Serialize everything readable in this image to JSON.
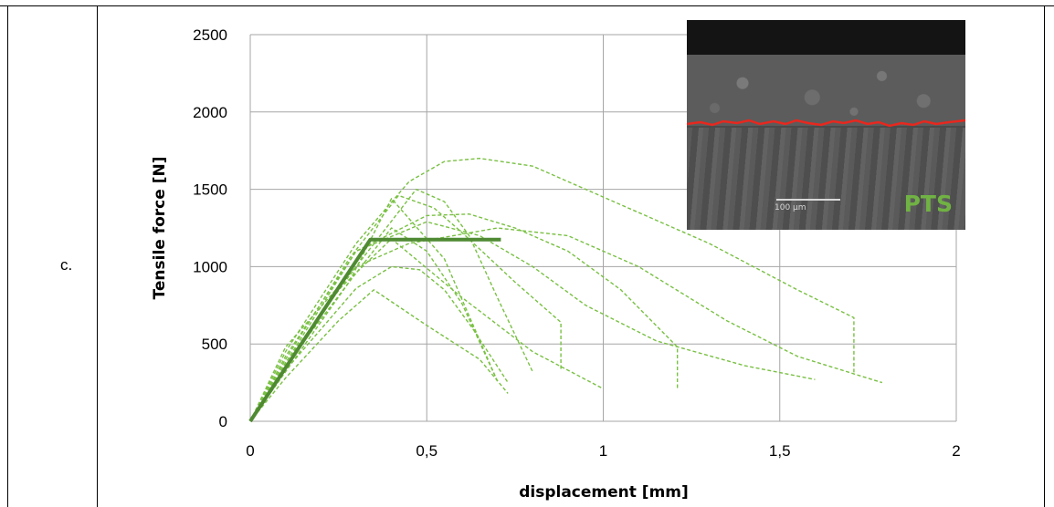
{
  "row_label": "c.",
  "inset": {
    "label": "PTS",
    "label_color": "#70b243",
    "boundary_color": "#e8271e",
    "scale_text": "100 µm"
  },
  "colors": {
    "dashed_series": "#79c043",
    "bilinear_model": "#4f8a32",
    "grid": "#a6a6a6"
  },
  "chart_data": {
    "type": "line",
    "xlabel": "displacement [mm]",
    "ylabel": "Tensile force [N]",
    "xlim": [
      0,
      2
    ],
    "ylim": [
      0,
      2500
    ],
    "x_ticks": [
      0,
      0.5,
      1,
      1.5,
      2
    ],
    "x_tick_labels": [
      "0",
      "0,5",
      "1",
      "1,5",
      "2"
    ],
    "y_ticks": [
      0,
      500,
      1000,
      1500,
      2000,
      2500
    ],
    "y_tick_labels": [
      "0",
      "500",
      "1000",
      "1500",
      "2000",
      "2500"
    ],
    "grid": true,
    "legend": "none",
    "series": [
      {
        "style": "solid",
        "x": [
          0,
          0.34,
          0.71
        ],
        "y": [
          0,
          1175,
          1175
        ]
      },
      {
        "style": "dashed",
        "x": [
          0,
          0.1,
          0.3,
          0.45,
          0.55,
          0.65,
          0.8,
          1.0,
          1.3,
          1.55,
          1.71,
          1.71
        ],
        "y": [
          0,
          450,
          1150,
          1550,
          1680,
          1700,
          1650,
          1450,
          1150,
          850,
          670,
          300
        ]
      },
      {
        "style": "dashed",
        "x": [
          0,
          0.1,
          0.3,
          0.45,
          0.7,
          0.9,
          1.1,
          1.35,
          1.55,
          1.79
        ],
        "y": [
          0,
          480,
          1000,
          1150,
          1250,
          1200,
          1000,
          650,
          420,
          250
        ]
      },
      {
        "style": "dashed",
        "x": [
          0,
          0.1,
          0.3,
          0.5,
          0.62,
          0.75,
          0.9,
          1.05,
          1.21,
          1.21
        ],
        "y": [
          0,
          420,
          1100,
          1330,
          1340,
          1250,
          1100,
          850,
          480,
          210
        ]
      },
      {
        "style": "dashed",
        "x": [
          0,
          0.12,
          0.3,
          0.5,
          0.65,
          0.8,
          0.95,
          1.15,
          1.4,
          1.6
        ],
        "y": [
          0,
          450,
          1100,
          1290,
          1200,
          1000,
          750,
          520,
          360,
          270
        ]
      },
      {
        "style": "dashed",
        "x": [
          0,
          0.1,
          0.28,
          0.42,
          0.52,
          0.6,
          0.75,
          0.88,
          0.88
        ],
        "y": [
          0,
          400,
          1050,
          1460,
          1380,
          1220,
          900,
          640,
          330
        ]
      },
      {
        "style": "dashed",
        "x": [
          0,
          0.1,
          0.3,
          0.47,
          0.55,
          0.62,
          0.7,
          0.8
        ],
        "y": [
          0,
          380,
          1000,
          1500,
          1420,
          1200,
          800,
          320
        ]
      },
      {
        "style": "dashed",
        "x": [
          0,
          0.1,
          0.3,
          0.4,
          0.48,
          0.55,
          0.63,
          0.73
        ],
        "y": [
          0,
          330,
          860,
          1000,
          980,
          850,
          600,
          250
        ]
      },
      {
        "style": "dashed",
        "x": [
          0,
          0.08,
          0.28,
          0.4,
          0.5,
          0.6,
          0.7
        ],
        "y": [
          0,
          300,
          900,
          1250,
          1100,
          760,
          260
        ]
      },
      {
        "style": "dashed",
        "x": [
          0,
          0.1,
          0.25,
          0.35,
          0.5,
          0.65,
          0.73
        ],
        "y": [
          0,
          280,
          650,
          850,
          620,
          400,
          180
        ]
      },
      {
        "style": "dashed",
        "x": [
          0,
          0.1,
          0.25,
          0.4,
          0.6,
          0.8,
          1.0
        ],
        "y": [
          0,
          350,
          850,
          1180,
          800,
          450,
          210
        ]
      },
      {
        "style": "dashed",
        "x": [
          0,
          0.1,
          0.28,
          0.4,
          0.55,
          0.7
        ],
        "y": [
          0,
          320,
          900,
          1440,
          1050,
          260
        ]
      }
    ]
  }
}
